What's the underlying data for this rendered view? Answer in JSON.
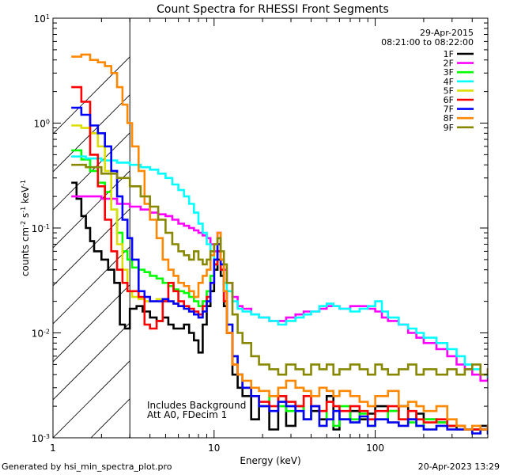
{
  "chart_data": {
    "type": "line",
    "title": "Count Spectra for RHESSI Front Segments",
    "xlabel": "Energy (keV)",
    "ylabel_base": "counts cm",
    "ylabel_exp1": "-2",
    "ylabel_mid1": " s",
    "ylabel_exp2": "-1",
    "ylabel_mid2": " keV",
    "ylabel_exp3": "-1",
    "xscale": "log",
    "yscale": "log",
    "xlim": [
      1,
      500
    ],
    "ylim": [
      0.001,
      10
    ],
    "x_ticks": [
      {
        "value": 1,
        "label": "1"
      },
      {
        "value": 10,
        "label": "10"
      },
      {
        "value": 100,
        "label": "100"
      }
    ],
    "y_ticks": [
      {
        "value": 0.001,
        "base": "10",
        "exp": "-3"
      },
      {
        "value": 0.01,
        "base": "10",
        "exp": "-2"
      },
      {
        "value": 0.1,
        "base": "10",
        "exp": "-1"
      },
      {
        "value": 1,
        "base": "10",
        "exp": "0"
      },
      {
        "value": 10,
        "base": "10",
        "exp": "1"
      }
    ],
    "date": "29-Apr-2015",
    "time_range": "08:21:00 to 08:22:00",
    "annotations": [
      "Includes Background",
      "Att A0, FDecim 1"
    ],
    "hatched_range": [
      1,
      3
    ],
    "legend_position": "top-right",
    "series": [
      {
        "name": "1F",
        "color": "#000000",
        "x": [
          1.3,
          1.4,
          1.5,
          1.6,
          1.7,
          1.8,
          2.0,
          2.2,
          2.4,
          2.6,
          2.8,
          3.0,
          3.3,
          3.6,
          4.0,
          4.4,
          4.8,
          5.2,
          5.6,
          6.0,
          6.5,
          7.0,
          7.5,
          8.0,
          8.5,
          9.0,
          9.5,
          10.0,
          10.5,
          11.0,
          11.5,
          12,
          13,
          14,
          15,
          17,
          19,
          22,
          25,
          28,
          32,
          36,
          40,
          45,
          50,
          55,
          60,
          70,
          80,
          90,
          100,
          120,
          140,
          160,
          180,
          200,
          240,
          280,
          320,
          360,
          400,
          450,
          500
        ],
        "y": [
          0.27,
          0.19,
          0.13,
          0.1,
          0.075,
          0.06,
          0.05,
          0.04,
          0.03,
          0.012,
          0.011,
          0.017,
          0.018,
          0.016,
          0.014,
          0.013,
          0.014,
          0.012,
          0.011,
          0.011,
          0.012,
          0.01,
          0.0085,
          0.0065,
          0.012,
          0.018,
          0.025,
          0.04,
          0.05,
          0.035,
          0.018,
          0.01,
          0.004,
          0.003,
          0.0025,
          0.0015,
          0.002,
          0.0012,
          0.0025,
          0.0013,
          0.002,
          0.0015,
          0.0018,
          0.0015,
          0.0025,
          0.0012,
          0.0015,
          0.0018,
          0.0015,
          0.0017,
          0.002,
          0.0018,
          0.002,
          0.0015,
          0.0017,
          0.0015,
          0.0014,
          0.0013,
          0.0012,
          0.0012,
          0.0012,
          0.0013,
          0.0012
        ]
      },
      {
        "name": "2F",
        "color": "#ff00ff",
        "x": [
          1.3,
          1.6,
          2.0,
          2.5,
          3.0,
          3.5,
          4.0,
          4.5,
          5.0,
          5.5,
          6.0,
          6.5,
          7.0,
          7.5,
          8.0,
          8.5,
          9.0,
          9.5,
          10,
          10.5,
          11,
          11.5,
          12,
          13,
          14,
          15,
          17,
          19,
          22,
          25,
          28,
          32,
          36,
          40,
          45,
          50,
          55,
          60,
          70,
          80,
          90,
          100,
          110,
          120,
          140,
          160,
          180,
          200,
          240,
          280,
          320,
          360,
          400,
          450,
          500
        ],
        "y": [
          0.2,
          0.2,
          0.19,
          0.17,
          0.16,
          0.15,
          0.14,
          0.135,
          0.13,
          0.12,
          0.11,
          0.105,
          0.1,
          0.095,
          0.09,
          0.085,
          0.08,
          0.07,
          0.06,
          0.09,
          0.05,
          0.04,
          0.03,
          0.022,
          0.018,
          0.017,
          0.015,
          0.014,
          0.013,
          0.013,
          0.014,
          0.015,
          0.016,
          0.016,
          0.017,
          0.018,
          0.018,
          0.017,
          0.018,
          0.018,
          0.017,
          0.016,
          0.014,
          0.013,
          0.012,
          0.01,
          0.009,
          0.008,
          0.007,
          0.006,
          0.005,
          0.0045,
          0.004,
          0.0035,
          0.0045
        ]
      },
      {
        "name": "3F",
        "color": "#00ff00",
        "x": [
          1.3,
          1.5,
          1.7,
          1.9,
          2.1,
          2.3,
          2.5,
          2.7,
          2.9,
          3.1,
          3.4,
          3.7,
          4.0,
          4.4,
          4.8,
          5.2,
          5.6,
          6.0,
          6.5,
          7.0,
          7.5,
          8.0,
          8.5,
          9.0,
          9.5,
          10,
          10.5,
          11,
          11.5,
          12,
          13,
          14,
          15,
          17,
          19,
          22,
          25,
          28,
          32,
          36,
          40,
          45,
          50,
          55,
          60,
          70,
          80,
          90,
          100,
          120,
          140,
          160,
          180,
          200,
          240,
          280,
          320,
          360,
          400,
          450,
          500
        ],
        "y": [
          0.55,
          0.45,
          0.35,
          0.27,
          0.22,
          0.15,
          0.09,
          0.06,
          0.05,
          0.042,
          0.04,
          0.038,
          0.035,
          0.033,
          0.03,
          0.028,
          0.026,
          0.025,
          0.024,
          0.022,
          0.02,
          0.018,
          0.02,
          0.025,
          0.035,
          0.045,
          0.06,
          0.04,
          0.02,
          0.012,
          0.006,
          0.004,
          0.003,
          0.0025,
          0.002,
          0.0025,
          0.002,
          0.0018,
          0.002,
          0.0015,
          0.002,
          0.0018,
          0.0015,
          0.0013,
          0.002,
          0.0015,
          0.0017,
          0.0013,
          0.0015,
          0.0018,
          0.0015,
          0.0014,
          0.0013,
          0.0015,
          0.0014,
          0.0013,
          0.0013,
          0.0012,
          0.0012,
          0.0012,
          0.0012
        ]
      },
      {
        "name": "4F",
        "color": "#00ffff",
        "x": [
          1.3,
          1.6,
          2.0,
          2.5,
          3.0,
          3.5,
          4.0,
          4.5,
          5.0,
          5.5,
          6.0,
          6.5,
          7.0,
          7.5,
          8.0,
          8.5,
          9.0,
          9.5,
          10,
          10.5,
          11,
          11.5,
          12,
          13,
          14,
          15,
          17,
          19,
          22,
          25,
          28,
          32,
          36,
          40,
          45,
          50,
          55,
          60,
          70,
          80,
          90,
          100,
          110,
          120,
          140,
          160,
          180,
          200,
          240,
          280,
          320,
          360,
          400,
          450,
          500
        ],
        "y": [
          0.48,
          0.46,
          0.44,
          0.42,
          0.4,
          0.38,
          0.36,
          0.33,
          0.3,
          0.26,
          0.23,
          0.2,
          0.17,
          0.14,
          0.11,
          0.09,
          0.07,
          0.06,
          0.05,
          0.08,
          0.04,
          0.03,
          0.025,
          0.02,
          0.017,
          0.016,
          0.015,
          0.014,
          0.013,
          0.012,
          0.013,
          0.014,
          0.015,
          0.016,
          0.018,
          0.019,
          0.018,
          0.017,
          0.016,
          0.017,
          0.018,
          0.02,
          0.016,
          0.014,
          0.012,
          0.011,
          0.01,
          0.009,
          0.008,
          0.007,
          0.006,
          0.005,
          0.0045,
          0.004,
          0.0038
        ]
      },
      {
        "name": "5F",
        "color": "#dddd00",
        "x": [
          1.3,
          1.5,
          1.7,
          1.9,
          2.1,
          2.3,
          2.5,
          2.7,
          2.9,
          3.1,
          3.4,
          3.7,
          4.0,
          4.4,
          4.8,
          5.2,
          5.6,
          6.0,
          6.5,
          7.0,
          7.5,
          8.0,
          8.5,
          9.0,
          9.5,
          10,
          10.5,
          11,
          11.5,
          12,
          13,
          14,
          15,
          17,
          19,
          22,
          25,
          28,
          32,
          36,
          40,
          45,
          50,
          55,
          60,
          70,
          80,
          90,
          100,
          120,
          140,
          160,
          180,
          200,
          240,
          280,
          320,
          360,
          400,
          450,
          500
        ],
        "y": [
          0.95,
          0.9,
          0.8,
          0.6,
          0.35,
          0.15,
          0.07,
          0.04,
          0.025,
          0.022,
          0.021,
          0.02,
          0.02,
          0.021,
          0.02,
          0.02,
          0.019,
          0.018,
          0.017,
          0.016,
          0.015,
          0.014,
          0.016,
          0.02,
          0.03,
          0.05,
          0.07,
          0.045,
          0.025,
          0.012,
          0.006,
          0.004,
          0.003,
          0.0025,
          0.002,
          0.0018,
          0.0022,
          0.002,
          0.0018,
          0.0015,
          0.002,
          0.0013,
          0.0015,
          0.0018,
          0.0015,
          0.0014,
          0.0016,
          0.0013,
          0.0015,
          0.0014,
          0.0013,
          0.0015,
          0.0013,
          0.0012,
          0.0013,
          0.0012,
          0.0012,
          0.0012,
          0.0011,
          0.0012,
          0.0011
        ]
      },
      {
        "name": "6F",
        "color": "#ff0000",
        "x": [
          1.3,
          1.5,
          1.7,
          1.9,
          2.1,
          2.3,
          2.5,
          2.7,
          2.9,
          3.1,
          3.4,
          3.7,
          4.0,
          4.4,
          4.8,
          5.2,
          5.6,
          6.0,
          6.5,
          7.0,
          7.5,
          8.0,
          8.5,
          9.0,
          9.5,
          10,
          10.5,
          11,
          11.5,
          12,
          13,
          14,
          15,
          17,
          19,
          22,
          25,
          28,
          32,
          36,
          40,
          45,
          50,
          55,
          60,
          70,
          80,
          90,
          100,
          120,
          140,
          160,
          180,
          200,
          240,
          280,
          320,
          360,
          400,
          450,
          500
        ],
        "y": [
          2.2,
          1.6,
          0.5,
          0.25,
          0.12,
          0.06,
          0.04,
          0.03,
          0.025,
          0.025,
          0.022,
          0.012,
          0.011,
          0.013,
          0.02,
          0.03,
          0.025,
          0.02,
          0.018,
          0.017,
          0.016,
          0.015,
          0.018,
          0.022,
          0.03,
          0.045,
          0.06,
          0.04,
          0.02,
          0.01,
          0.005,
          0.004,
          0.003,
          0.0025,
          0.0022,
          0.002,
          0.0025,
          0.0022,
          0.002,
          0.0025,
          0.002,
          0.0018,
          0.0022,
          0.002,
          0.0018,
          0.002,
          0.0018,
          0.0015,
          0.0018,
          0.002,
          0.0015,
          0.0018,
          0.0015,
          0.0014,
          0.0015,
          0.0013,
          0.0013,
          0.0012,
          0.0012,
          0.0012,
          0.0012
        ]
      },
      {
        "name": "7F",
        "color": "#0000ff",
        "x": [
          1.3,
          1.5,
          1.7,
          1.9,
          2.1,
          2.3,
          2.5,
          2.7,
          2.9,
          3.1,
          3.4,
          3.7,
          4.0,
          4.4,
          4.8,
          5.2,
          5.6,
          6.0,
          6.5,
          7.0,
          7.5,
          8.0,
          8.5,
          9.0,
          9.5,
          10,
          10.5,
          11,
          11.5,
          12,
          13,
          14,
          15,
          17,
          19,
          22,
          25,
          28,
          32,
          36,
          40,
          45,
          50,
          55,
          60,
          70,
          80,
          90,
          100,
          120,
          140,
          160,
          180,
          200,
          240,
          280,
          320,
          360,
          400,
          450,
          500
        ],
        "y": [
          1.4,
          1.2,
          0.95,
          0.8,
          0.6,
          0.35,
          0.2,
          0.12,
          0.08,
          0.05,
          0.025,
          0.022,
          0.02,
          0.02,
          0.021,
          0.02,
          0.019,
          0.018,
          0.017,
          0.016,
          0.015,
          0.014,
          0.016,
          0.02,
          0.03,
          0.05,
          0.07,
          0.045,
          0.025,
          0.012,
          0.006,
          0.004,
          0.003,
          0.0025,
          0.002,
          0.0018,
          0.0022,
          0.002,
          0.0018,
          0.0015,
          0.002,
          0.0013,
          0.0015,
          0.0018,
          0.0015,
          0.0014,
          0.0016,
          0.0013,
          0.0015,
          0.0014,
          0.0013,
          0.0015,
          0.0013,
          0.0012,
          0.0013,
          0.0012,
          0.0012,
          0.0012,
          0.0011,
          0.0012,
          0.0011
        ]
      },
      {
        "name": "8F",
        "color": "#ff8800",
        "x": [
          1.3,
          1.5,
          1.7,
          1.9,
          2.1,
          2.3,
          2.5,
          2.7,
          2.9,
          3.1,
          3.4,
          3.7,
          4.0,
          4.4,
          4.8,
          5.2,
          5.6,
          6.0,
          6.5,
          7.0,
          7.5,
          8.0,
          8.5,
          9.0,
          9.5,
          10,
          10.5,
          11,
          11.5,
          12,
          13,
          14,
          15,
          17,
          19,
          22,
          25,
          28,
          32,
          36,
          40,
          45,
          50,
          55,
          60,
          70,
          80,
          90,
          100,
          120,
          140,
          160,
          180,
          200,
          240,
          280,
          320,
          360,
          400,
          450,
          500
        ],
        "y": [
          4.3,
          4.5,
          4.0,
          3.8,
          3.5,
          3.0,
          2.2,
          1.5,
          1.0,
          0.6,
          0.35,
          0.17,
          0.12,
          0.08,
          0.05,
          0.04,
          0.035,
          0.03,
          0.028,
          0.025,
          0.022,
          0.03,
          0.035,
          0.04,
          0.055,
          0.07,
          0.09,
          0.05,
          0.025,
          0.01,
          0.005,
          0.004,
          0.0035,
          0.003,
          0.0028,
          0.0025,
          0.003,
          0.0035,
          0.003,
          0.0028,
          0.0025,
          0.003,
          0.0028,
          0.0025,
          0.0028,
          0.0025,
          0.0022,
          0.002,
          0.0025,
          0.0028,
          0.002,
          0.0022,
          0.002,
          0.0018,
          0.002,
          0.0015,
          0.0013,
          0.0012,
          0.0013,
          0.0012,
          0.0013
        ]
      },
      {
        "name": "9F",
        "color": "#888800",
        "x": [
          1.3,
          1.6,
          2.0,
          2.5,
          3.0,
          3.5,
          4.0,
          4.5,
          5.0,
          5.5,
          6.0,
          6.5,
          7.0,
          7.5,
          8.0,
          8.5,
          9.0,
          9.5,
          10,
          10.5,
          11,
          11.5,
          12,
          13,
          14,
          15,
          17,
          19,
          22,
          25,
          28,
          32,
          36,
          40,
          45,
          50,
          55,
          60,
          70,
          80,
          90,
          100,
          110,
          120,
          140,
          160,
          180,
          200,
          240,
          280,
          320,
          360,
          400,
          450,
          500
        ],
        "y": [
          0.4,
          0.38,
          0.33,
          0.3,
          0.25,
          0.2,
          0.16,
          0.12,
          0.09,
          0.07,
          0.06,
          0.055,
          0.05,
          0.06,
          0.05,
          0.045,
          0.05,
          0.06,
          0.07,
          0.08,
          0.06,
          0.045,
          0.03,
          0.015,
          0.01,
          0.008,
          0.006,
          0.005,
          0.0045,
          0.004,
          0.005,
          0.0045,
          0.004,
          0.005,
          0.0045,
          0.005,
          0.004,
          0.0045,
          0.005,
          0.0045,
          0.004,
          0.005,
          0.0045,
          0.004,
          0.0045,
          0.005,
          0.004,
          0.0045,
          0.004,
          0.0045,
          0.004,
          0.0045,
          0.005,
          0.004,
          0.0045
        ]
      }
    ]
  },
  "footer": {
    "generated_by": "Generated by hsi_min_spectra_plot.pro",
    "timestamp": "20-Apr-2023 13:29"
  }
}
